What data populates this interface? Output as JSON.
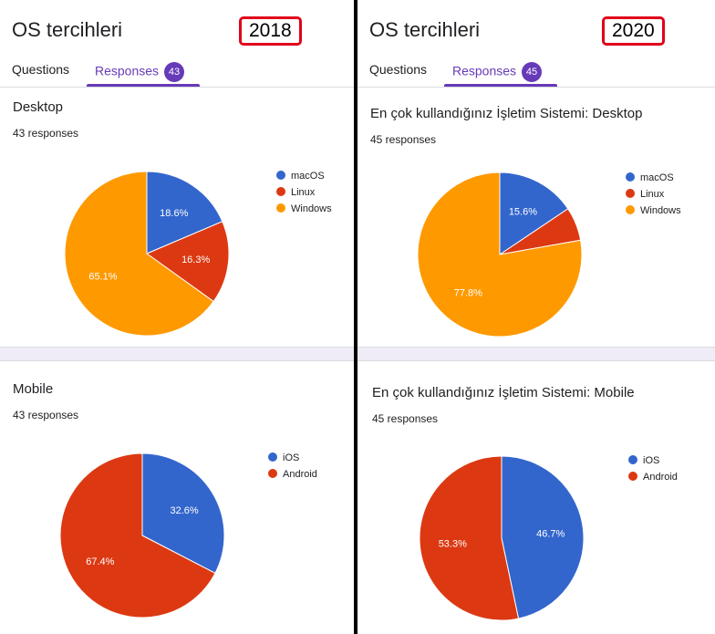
{
  "panels": [
    {
      "form_title": "OS tercihleri",
      "year": "2018",
      "tabs": [
        {
          "label": "Questions"
        },
        {
          "label": "Responses",
          "badge": "43"
        }
      ],
      "active_tab": 1
    },
    {
      "form_title": "OS tercihleri",
      "year": "2020",
      "tabs": [
        {
          "label": "Questions"
        },
        {
          "label": "Responses",
          "badge": "45"
        }
      ],
      "active_tab": 1
    }
  ],
  "colors": {
    "macOS": "#3366cc",
    "Linux": "#dc3912",
    "Windows": "#ff9900",
    "iOS": "#3366cc",
    "Android": "#dc3912"
  },
  "chart_data": [
    {
      "type": "pie",
      "title": "Desktop",
      "responses": "43 responses",
      "categories": [
        "macOS",
        "Linux",
        "Windows"
      ],
      "values": [
        18.6,
        16.3,
        65.1
      ],
      "labels": [
        "18.6%",
        "16.3%",
        "65.1%"
      ],
      "legend_position": "right"
    },
    {
      "type": "pie",
      "title": "Mobile",
      "responses": "43 responses",
      "categories": [
        "iOS",
        "Android"
      ],
      "values": [
        32.6,
        67.4
      ],
      "labels": [
        "32.6%",
        "67.4%"
      ],
      "legend_position": "right"
    },
    {
      "type": "pie",
      "title": "En çok kullandığınız İşletim Sistemi: Desktop",
      "responses": "45 responses",
      "categories": [
        "macOS",
        "Linux",
        "Windows"
      ],
      "values": [
        15.6,
        6.6,
        77.8
      ],
      "labels": [
        "15.6%",
        "",
        "77.8%"
      ],
      "legend_position": "right"
    },
    {
      "type": "pie",
      "title": "En çok kullandığınız İşletim Sistemi: Mobile",
      "responses": "45 responses",
      "categories": [
        "iOS",
        "Android"
      ],
      "values": [
        46.7,
        53.3
      ],
      "labels": [
        "46.7%",
        "53.3%"
      ],
      "legend_position": "right"
    }
  ]
}
